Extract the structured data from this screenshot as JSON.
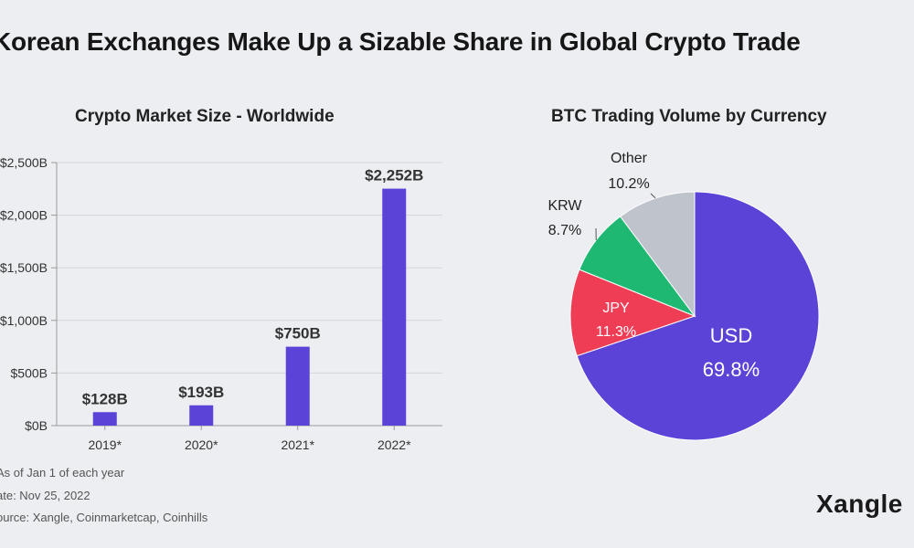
{
  "title": "Korean Exchanges Make Up a Sizable Share in Global Crypto Trade",
  "footnotes": [
    "As of Jan 1 of each year",
    "ate: Nov 25, 2022",
    "ource: Xangle, Coinmarketcap, Coinhills"
  ],
  "logo": "Xangle",
  "chart_data": [
    {
      "type": "bar",
      "title": "Crypto Market Size - Worldwide",
      "categories": [
        "2019*",
        "2020*",
        "2021*",
        "2022*"
      ],
      "values": [
        128,
        193,
        750,
        2252
      ],
      "data_labels": [
        "$128B",
        "$193B",
        "$750B",
        "$2,252B"
      ],
      "unit": "B USD",
      "ylim": [
        0,
        2500
      ],
      "yticks": [
        0,
        500,
        1000,
        1500,
        2000,
        2500
      ],
      "ytick_labels": [
        "$0B",
        "$500B",
        "$1,000B",
        "$1,500B",
        "$2,000B",
        "$2,500B"
      ],
      "grid": true,
      "color": "#5a43d6"
    },
    {
      "type": "pie",
      "title": "BTC Trading Volume by Currency",
      "slices": [
        {
          "label": "USD",
          "value": 69.8,
          "text": "69.8%",
          "color": "#5a43d6"
        },
        {
          "label": "JPY",
          "value": 11.3,
          "text": "11.3%",
          "color": "#ef3d56"
        },
        {
          "label": "KRW",
          "value": 8.7,
          "text": "8.7%",
          "color": "#1fb872"
        },
        {
          "label": "Other",
          "value": 10.2,
          "text": "10.2%",
          "color": "#bfc4cc"
        }
      ]
    }
  ]
}
